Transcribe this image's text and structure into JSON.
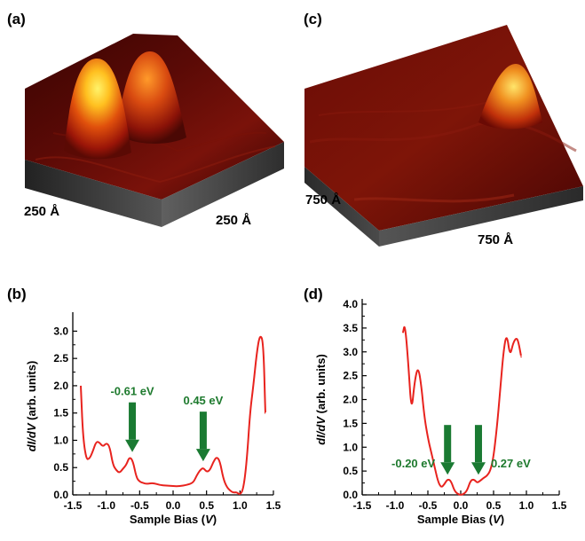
{
  "labels": {
    "a": "(a)",
    "b": "(b)",
    "c": "(c)",
    "d": "(d)"
  },
  "scale_labels": {
    "a_left": "250 Å",
    "a_right": "250 Å",
    "c_left": "750 Å",
    "c_right": "750 Å"
  },
  "colors": {
    "curve": "#e8231e",
    "arrow": "#1a7a32",
    "annotation": "#1e7a2e"
  },
  "chart_data": [
    {
      "panel": "(b)",
      "type": "line",
      "xlabel_pre": "Sample Bias (",
      "xlabel_var": "V",
      "xlabel_post": ")",
      "ylabel_var": "dI/dV",
      "ylabel_post": " (arb. units)",
      "xlim": [
        -1.5,
        1.5
      ],
      "ylim": [
        0,
        3.25
      ],
      "xticks": [
        "-1.5",
        "-1.0",
        "-0.5",
        "0.0",
        "0.5",
        "1.0",
        "1.5"
      ],
      "xtick_values": [
        -1.5,
        -1.0,
        -0.5,
        0.0,
        0.5,
        1.0,
        1.5
      ],
      "yticks": [
        "0.0",
        "0.5",
        "1.0",
        "1.5",
        "2.0",
        "2.5",
        "3.0"
      ],
      "ytick_values": [
        0,
        0.5,
        1.0,
        1.5,
        2.0,
        2.5,
        3.0
      ],
      "x": [
        -1.38,
        -1.35,
        -1.3,
        -1.25,
        -1.2,
        -1.15,
        -1.1,
        -1.05,
        -1.0,
        -0.95,
        -0.9,
        -0.85,
        -0.8,
        -0.75,
        -0.7,
        -0.65,
        -0.6,
        -0.55,
        -0.5,
        -0.45,
        -0.4,
        -0.3,
        -0.2,
        -0.1,
        0.0,
        0.1,
        0.2,
        0.3,
        0.35,
        0.4,
        0.45,
        0.5,
        0.55,
        0.6,
        0.65,
        0.7,
        0.75,
        0.8,
        0.85,
        0.9,
        0.95,
        1.0,
        1.05,
        1.1,
        1.15,
        1.2,
        1.25,
        1.3,
        1.35,
        1.38
      ],
      "y": [
        2.0,
        1.1,
        0.65,
        0.66,
        0.8,
        0.98,
        0.96,
        0.88,
        0.95,
        0.9,
        0.55,
        0.45,
        0.4,
        0.48,
        0.55,
        0.7,
        0.62,
        0.32,
        0.24,
        0.22,
        0.2,
        0.22,
        0.18,
        0.17,
        0.16,
        0.16,
        0.18,
        0.22,
        0.35,
        0.45,
        0.5,
        0.42,
        0.45,
        0.6,
        0.7,
        0.62,
        0.3,
        0.15,
        0.08,
        0.04,
        0.05,
        0.0,
        0.1,
        0.6,
        1.5,
        2.0,
        2.6,
        2.95,
        2.8,
        1.5
      ],
      "annotations": [
        {
          "text": "-0.61 eV",
          "x": -0.61,
          "y": 0.72
        },
        {
          "text": "0.45 eV",
          "x": 0.45,
          "y": 0.55
        }
      ]
    },
    {
      "panel": "(d)",
      "type": "line",
      "xlabel_pre": "Sample Bias (",
      "xlabel_var": "V",
      "xlabel_post": ")",
      "ylabel_var": "dI/dV",
      "ylabel_post": " (arb. units)",
      "xlim": [
        -1.5,
        1.5
      ],
      "ylim": [
        0,
        4.0
      ],
      "xticks": [
        "-1.5",
        "-1.0",
        "-0.5",
        "0.0",
        "0.5",
        "1.0",
        "1.5"
      ],
      "xtick_values": [
        -1.5,
        -1.0,
        -0.5,
        0.0,
        0.5,
        1.0,
        1.5
      ],
      "yticks": [
        "0.0",
        "0.5",
        "1.0",
        "1.5",
        "2.0",
        "2.5",
        "3.0",
        "3.5",
        "4.0"
      ],
      "ytick_values": [
        0,
        0.5,
        1.0,
        1.5,
        2.0,
        2.5,
        3.0,
        3.5,
        4.0
      ],
      "x": [
        -0.88,
        -0.85,
        -0.8,
        -0.75,
        -0.7,
        -0.65,
        -0.6,
        -0.55,
        -0.5,
        -0.45,
        -0.4,
        -0.35,
        -0.3,
        -0.25,
        -0.2,
        -0.15,
        -0.1,
        -0.05,
        0.0,
        0.05,
        0.1,
        0.15,
        0.2,
        0.25,
        0.3,
        0.35,
        0.4,
        0.45,
        0.5,
        0.55,
        0.6,
        0.65,
        0.7,
        0.75,
        0.8,
        0.85,
        0.88,
        0.92
      ],
      "y": [
        3.4,
        3.6,
        2.8,
        1.7,
        2.4,
        2.7,
        2.3,
        1.6,
        1.2,
        0.9,
        0.6,
        0.3,
        0.15,
        0.22,
        0.33,
        0.3,
        0.1,
        0.02,
        0.0,
        0.02,
        0.1,
        0.3,
        0.33,
        0.25,
        0.3,
        0.36,
        0.4,
        0.5,
        0.8,
        1.4,
        2.2,
        3.0,
        3.4,
        2.9,
        3.2,
        3.3,
        3.2,
        2.9
      ],
      "annotations": [
        {
          "text": "-0.20 eV",
          "x": -0.2,
          "y": 0.35
        },
        {
          "text": "0.27 eV",
          "x": 0.27,
          "y": 0.35
        }
      ]
    }
  ]
}
